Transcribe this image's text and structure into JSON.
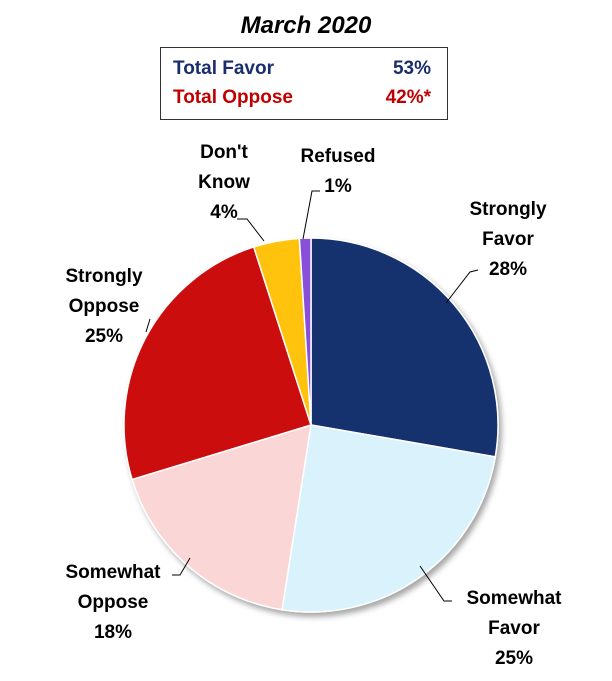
{
  "title": "March 2020",
  "summary": {
    "favor": {
      "label": "Total Favor",
      "value": "53%",
      "color": "#1a2e6e"
    },
    "oppose": {
      "label": "Total Oppose",
      "value": "42%*",
      "color": "#c00000"
    }
  },
  "chart_data": {
    "type": "pie",
    "title": "March 2020",
    "slices": [
      {
        "label": "Strongly Favor",
        "value": 28,
        "display": "28%",
        "color": "#17306e",
        "label_lines": [
          "Strongly",
          "Favor",
          "28%"
        ]
      },
      {
        "label": "Somewhat Favor",
        "value": 25,
        "display": "25%",
        "color": "#d9f2fb",
        "label_lines": [
          "Somewhat",
          "Favor",
          "25%"
        ]
      },
      {
        "label": "Somewhat Oppose",
        "value": 18,
        "display": "18%",
        "color": "#fbd6d6",
        "label_lines": [
          "Somewhat",
          "Oppose",
          "18%"
        ]
      },
      {
        "label": "Strongly Oppose",
        "value": 25,
        "display": "25%",
        "color": "#cc0a0a",
        "label_lines": [
          "Strongly",
          "Oppose",
          "25%"
        ]
      },
      {
        "label": "Don't Know",
        "value": 4,
        "display": "4%",
        "color": "#ffc20e",
        "label_lines": [
          "Don't",
          "Know",
          "4%"
        ]
      },
      {
        "label": "Refused",
        "value": 1,
        "display": "1%",
        "color": "#8a4fd8",
        "label_lines": [
          "Refused",
          "1%"
        ]
      }
    ]
  }
}
